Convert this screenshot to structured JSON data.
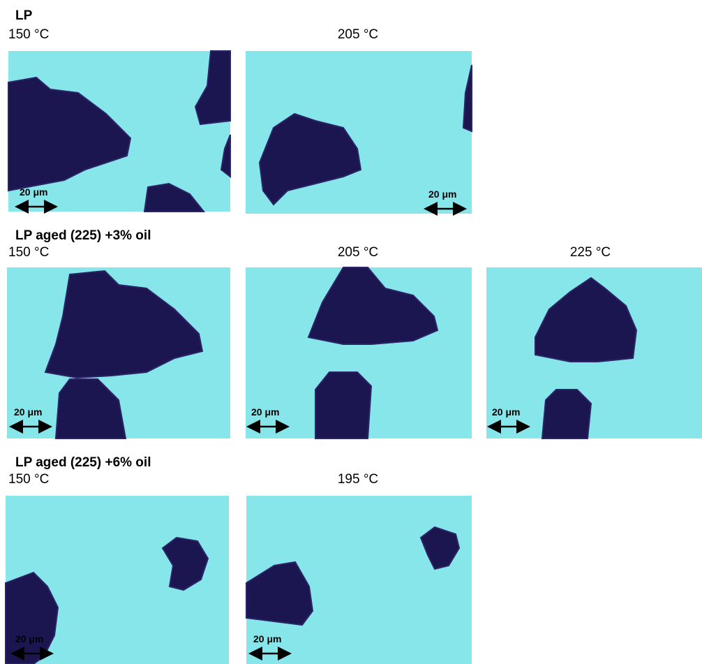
{
  "sections": [
    {
      "title": "LP",
      "panels": [
        {
          "label": "150 °C",
          "scale": "20 μm"
        },
        {
          "label": "205 °C",
          "scale": "20 μm"
        }
      ]
    },
    {
      "title": "LP aged (225) +3% oil",
      "panels": [
        {
          "label": "150 °C",
          "scale": "20 μm"
        },
        {
          "label": "205 °C",
          "scale": "20 μm"
        },
        {
          "label": "225 °C",
          "scale": "20 μm"
        }
      ]
    },
    {
      "title": "LP aged (225) +6% oil",
      "panels": [
        {
          "label": "150 °C",
          "scale": "20 μm"
        },
        {
          "label": "195 °C",
          "scale": "20 μm"
        }
      ]
    }
  ]
}
